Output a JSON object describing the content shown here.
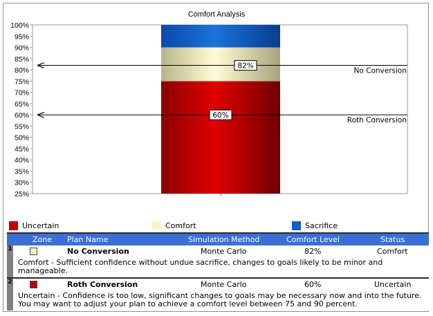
{
  "chart_data": {
    "type": "bar",
    "title": "Comfort Analysis",
    "ylim": [
      25,
      100
    ],
    "y_ticks": [
      "25%",
      "30%",
      "35%",
      "40%",
      "45%",
      "50%",
      "55%",
      "60%",
      "65%",
      "70%",
      "75%",
      "80%",
      "85%",
      "90%",
      "95%",
      "100%"
    ],
    "bands": [
      {
        "name": "Uncertain",
        "from": 25,
        "to": 75,
        "color": "#c00000"
      },
      {
        "name": "Comfort",
        "from": 75,
        "to": 90,
        "color": "#f2efc2"
      },
      {
        "name": "Sacrifice",
        "from": 90,
        "to": 100,
        "color": "#1060c8"
      }
    ],
    "markers": [
      {
        "plan": "No Conversion",
        "value": 82,
        "label": "82%"
      },
      {
        "plan": "Roth Conversion",
        "value": 60,
        "label": "60%"
      }
    ],
    "legend": [
      {
        "label": "Uncertain",
        "color": "#c00000"
      },
      {
        "label": "Comfort",
        "color": "#f7f3c6"
      },
      {
        "label": "Sacrifice",
        "color": "#1060c8"
      }
    ]
  },
  "table": {
    "headers": {
      "zone": "Zone",
      "plan": "Plan Name",
      "method": "Simulation Method",
      "level": "Comfort Level",
      "status": "Status"
    },
    "rows": [
      {
        "num": "1",
        "zone_color": "#f7f3c6",
        "plan": "No Conversion",
        "method": "Monte Carlo",
        "level": "82%",
        "status": "Comfort",
        "desc": "Comfort - Sufficient confidence without undue sacrifice, changes to goals likely to be minor and manageable."
      },
      {
        "num": "2",
        "zone_color": "#c00000",
        "plan": "Roth Conversion",
        "method": "Monte Carlo",
        "level": "60%",
        "status": "Uncertain",
        "desc": "Uncertain - Confidence is too low, significant changes to goals may be necessary now and into the future. You may want to adjust your plan to achieve a comfort level between 75 and 90 percent."
      }
    ]
  }
}
